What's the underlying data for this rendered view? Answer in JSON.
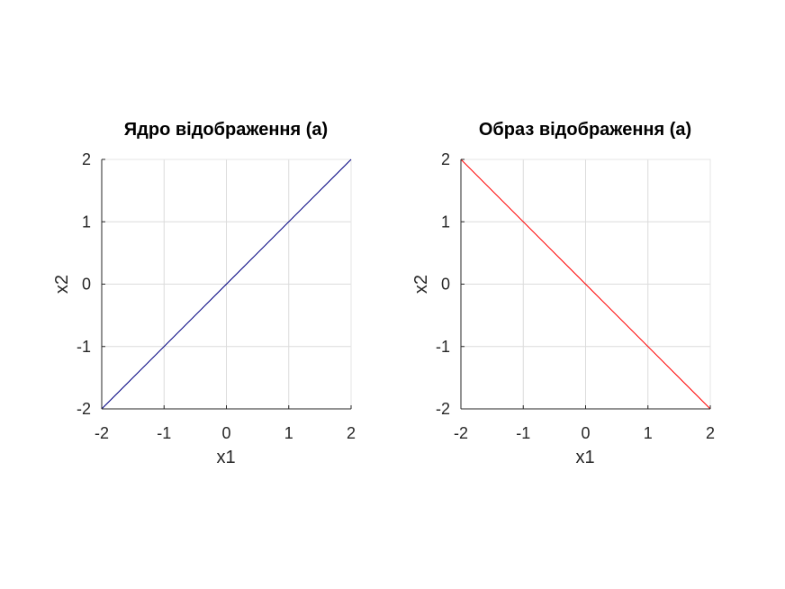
{
  "chart_data": [
    {
      "type": "line",
      "title": "Ядро відображення (а)",
      "xlabel": "x1",
      "ylabel": "x2",
      "xlim": [
        -2,
        2
      ],
      "ylim": [
        -2,
        2
      ],
      "xticks": [
        "-2",
        "-1",
        "0",
        "1",
        "2"
      ],
      "yticks": [
        "-2",
        "-1",
        "0",
        "1",
        "2"
      ],
      "grid": true,
      "series": [
        {
          "x": [
            -2,
            2
          ],
          "y": [
            -2,
            2
          ],
          "color": "#000080"
        }
      ]
    },
    {
      "type": "line",
      "title": "Образ відображення (а)",
      "xlabel": "x1",
      "ylabel": "x2",
      "xlim": [
        -2,
        2
      ],
      "ylim": [
        -2,
        2
      ],
      "xticks": [
        "-2",
        "-1",
        "0",
        "1",
        "2"
      ],
      "yticks": [
        "-2",
        "-1",
        "0",
        "1",
        "2"
      ],
      "grid": true,
      "series": [
        {
          "x": [
            -2,
            2
          ],
          "y": [
            2,
            -2
          ],
          "color": "#ff0000"
        }
      ]
    }
  ]
}
